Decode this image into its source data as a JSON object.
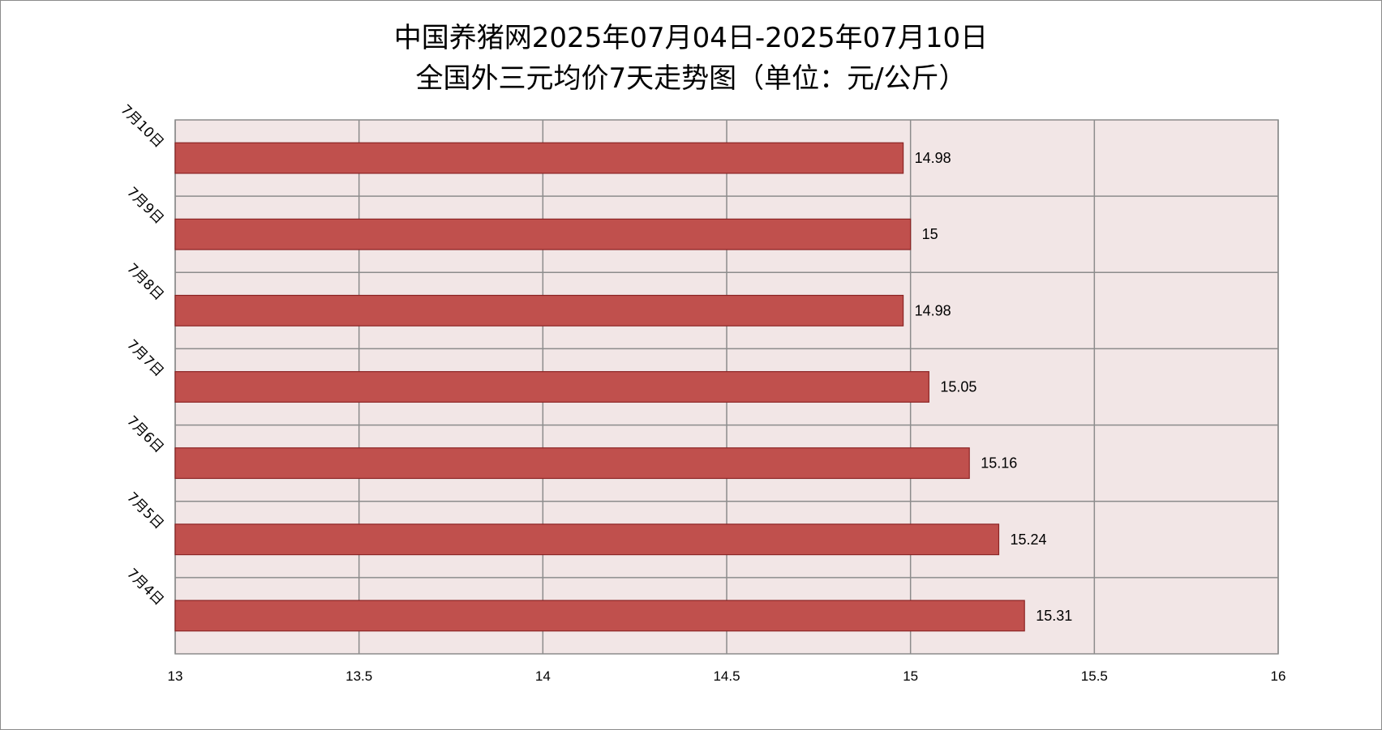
{
  "chart_data": {
    "type": "bar",
    "orientation": "horizontal",
    "title": "中国养猪网2025年07月04日-2025年07月10日",
    "subtitle": "全国外三元均价7天走势图（单位：元/公斤）",
    "categories": [
      "7月10日",
      "7月9日",
      "7月8日",
      "7月7日",
      "7月6日",
      "7月5日",
      "7月4日"
    ],
    "values": [
      14.98,
      15,
      14.98,
      15.05,
      15.16,
      15.24,
      15.31
    ],
    "value_labels": [
      "14.98",
      "15",
      "14.98",
      "15.05",
      "15.16",
      "15.24",
      "15.31"
    ],
    "xlim": [
      13,
      16
    ],
    "x_ticks": [
      "13",
      "13.5",
      "14",
      "14.5",
      "15",
      "15.5",
      "16"
    ],
    "x_tick_values": [
      13,
      13.5,
      14,
      14.5,
      15,
      15.5,
      16
    ],
    "xlabel": "",
    "ylabel": "",
    "grid": true,
    "legend": "none",
    "colors": {
      "bar_fill": "#c0504d",
      "bar_stroke": "#8b2323",
      "plot_background": "#f2e6e6",
      "grid": "#8c8c8c"
    }
  }
}
